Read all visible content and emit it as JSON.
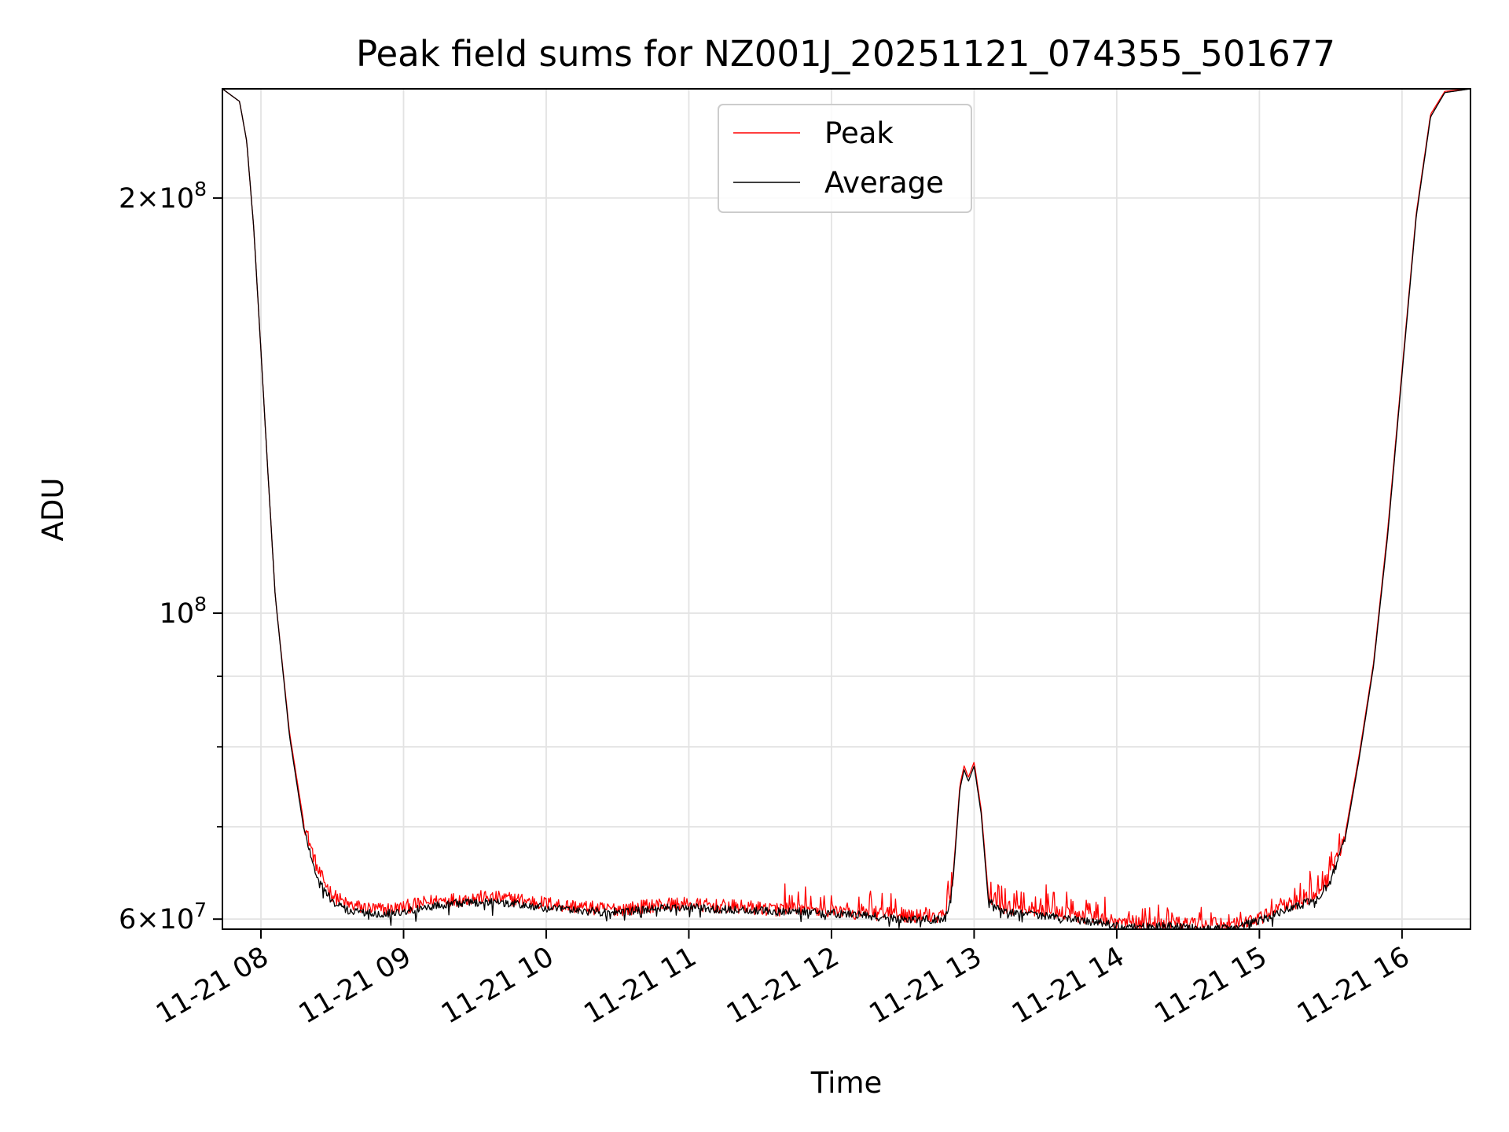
{
  "chart_data": {
    "type": "line",
    "title": "Peak field sums for NZ001J_20251121_074355_501677",
    "xlabel": "Time",
    "ylabel": "ADU",
    "y_scale": "log",
    "x_unit": "hours (decimal, 2025-11-21)",
    "xlim": [
      7.73,
      16.48
    ],
    "ylim": [
      59000000,
      240000000
    ],
    "grid": true,
    "legend_position": "upper center",
    "x_ticks": [
      {
        "value": 8,
        "label": "11-21 08"
      },
      {
        "value": 9,
        "label": "11-21 09"
      },
      {
        "value": 10,
        "label": "11-21 10"
      },
      {
        "value": 11,
        "label": "11-21 11"
      },
      {
        "value": 12,
        "label": "11-21 12"
      },
      {
        "value": 13,
        "label": "11-21 13"
      },
      {
        "value": 14,
        "label": "11-21 14"
      },
      {
        "value": 15,
        "label": "11-21 15"
      },
      {
        "value": 16,
        "label": "11-21 16"
      }
    ],
    "y_major_ticks": [
      {
        "value": 60000000,
        "label": "6×10",
        "exponent": "7"
      },
      {
        "value": 100000000,
        "label": "10",
        "exponent": "8"
      },
      {
        "value": 200000000,
        "label": "2×10",
        "exponent": "8"
      }
    ],
    "y_minor_grid": [
      70000000,
      80000000,
      90000000
    ],
    "series": [
      {
        "name": "Peak",
        "color": "#ff0000",
        "x": [
          7.73,
          7.85,
          7.9,
          7.95,
          8.0,
          8.05,
          8.1,
          8.2,
          8.3,
          8.4,
          8.5,
          8.6,
          8.7,
          8.8,
          8.9,
          9.0,
          9.1,
          9.2,
          9.3,
          9.4,
          9.5,
          9.6,
          9.7,
          9.8,
          9.9,
          10.0,
          10.2,
          10.4,
          10.6,
          10.8,
          11.0,
          11.2,
          11.4,
          11.6,
          11.8,
          12.0,
          12.2,
          12.4,
          12.6,
          12.8,
          12.85,
          12.9,
          12.93,
          12.96,
          13.0,
          13.05,
          13.1,
          13.2,
          13.4,
          13.6,
          13.8,
          14.0,
          14.2,
          14.4,
          14.6,
          14.8,
          15.0,
          15.2,
          15.4,
          15.5,
          15.6,
          15.7,
          15.8,
          15.9,
          16.0,
          16.1,
          16.2,
          16.3,
          16.48
        ],
        "y": [
          240000000,
          235000000,
          220000000,
          190000000,
          155000000,
          126000000,
          103000000,
          82000000,
          70500000,
          65000000,
          62500000,
          61500000,
          61200000,
          61000000,
          61000000,
          61200000,
          61500000,
          61800000,
          62000000,
          62000000,
          62200000,
          62200000,
          62100000,
          62000000,
          61800000,
          61600000,
          61300000,
          61000000,
          61100000,
          61500000,
          61500000,
          61300000,
          61200000,
          61000000,
          61000000,
          60800000,
          60700000,
          60500000,
          60300000,
          60400000,
          64000000,
          75000000,
          77500000,
          76000000,
          78000000,
          72000000,
          62500000,
          61200000,
          61000000,
          60600000,
          60200000,
          59800000,
          59600000,
          59600000,
          59400000,
          59500000,
          60000000,
          61500000,
          62500000,
          64500000,
          69000000,
          79000000,
          92000000,
          115000000,
          150000000,
          195000000,
          230000000,
          239000000,
          240000000
        ],
        "noise_amplitude": 0.012
      },
      {
        "name": "Average",
        "color": "#000000",
        "x": [
          7.73,
          7.85,
          7.9,
          7.95,
          8.0,
          8.05,
          8.1,
          8.2,
          8.3,
          8.4,
          8.5,
          8.6,
          8.7,
          8.8,
          8.9,
          9.0,
          9.1,
          9.2,
          9.3,
          9.4,
          9.5,
          9.6,
          9.7,
          9.8,
          9.9,
          10.0,
          10.2,
          10.4,
          10.6,
          10.8,
          11.0,
          11.2,
          11.4,
          11.6,
          11.8,
          12.0,
          12.2,
          12.4,
          12.6,
          12.8,
          12.85,
          12.9,
          12.93,
          12.96,
          13.0,
          13.05,
          13.1,
          13.2,
          13.4,
          13.6,
          13.8,
          14.0,
          14.2,
          14.4,
          14.6,
          14.8,
          15.0,
          15.2,
          15.4,
          15.5,
          15.6,
          15.7,
          15.8,
          15.9,
          16.0,
          16.1,
          16.2,
          16.3,
          16.48
        ],
        "y": [
          240000000,
          235000000,
          220000000,
          190000000,
          155000000,
          126000000,
          103000000,
          81500000,
          69800000,
          64000000,
          61800000,
          60900000,
          60700000,
          60600000,
          60600000,
          60800000,
          61000000,
          61300000,
          61500000,
          61600000,
          61700000,
          61700000,
          61600000,
          61500000,
          61300000,
          61100000,
          60900000,
          60700000,
          60800000,
          61100000,
          61200000,
          61000000,
          60900000,
          60800000,
          60800000,
          60600000,
          60400000,
          60100000,
          60000000,
          60000000,
          63500000,
          74500000,
          77000000,
          75500000,
          77500000,
          71500000,
          61800000,
          60800000,
          60500000,
          60100000,
          59800000,
          59400000,
          59200000,
          59300000,
          59000000,
          59200000,
          59800000,
          61000000,
          62000000,
          64000000,
          68500000,
          78500000,
          91500000,
          114000000,
          149000000,
          194000000,
          229000000,
          238500000,
          240000000
        ],
        "noise_amplitude": 0.007
      }
    ]
  }
}
